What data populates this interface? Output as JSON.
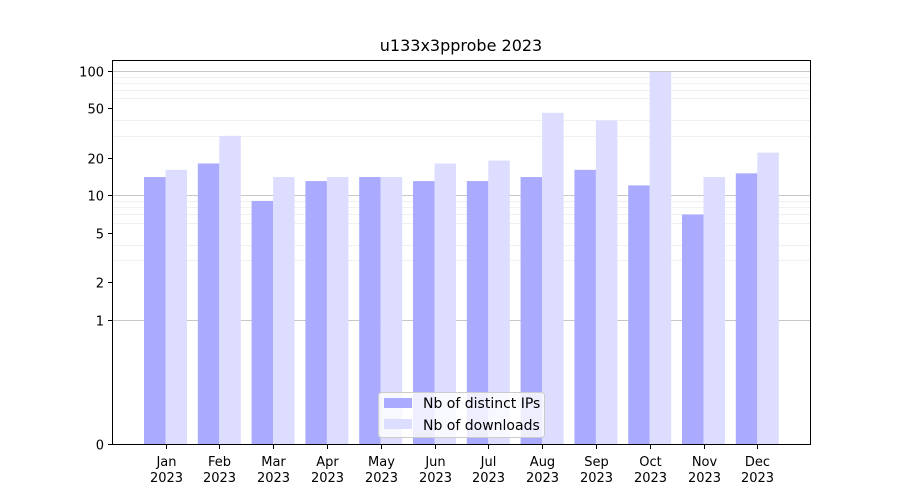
{
  "chart_data": {
    "type": "bar",
    "title": "u133x3pprobe 2023",
    "xlabel": "",
    "ylabel": "",
    "y_scale": "symlog",
    "ylim": [
      0,
      120
    ],
    "yticks": [
      0,
      1,
      2,
      5,
      10,
      20,
      50,
      100
    ],
    "categories": [
      "Jan\n2023",
      "Feb\n2023",
      "Mar\n2023",
      "Apr\n2023",
      "May\n2023",
      "Jun\n2023",
      "Jul\n2023",
      "Aug\n2023",
      "Sep\n2023",
      "Oct\n2023",
      "Nov\n2023",
      "Dec\n2023"
    ],
    "series": [
      {
        "name": "Nb of distinct IPs",
        "color": "#aaaaff",
        "values": [
          14,
          18,
          9,
          13,
          14,
          13,
          13,
          14,
          16,
          12,
          7,
          15
        ]
      },
      {
        "name": "Nb of downloads",
        "color": "#ddddff",
        "values": [
          16,
          30,
          14,
          14,
          14,
          18,
          19,
          46,
          40,
          98,
          14,
          22
        ]
      }
    ],
    "grid": true,
    "legend_position": "lower center"
  }
}
